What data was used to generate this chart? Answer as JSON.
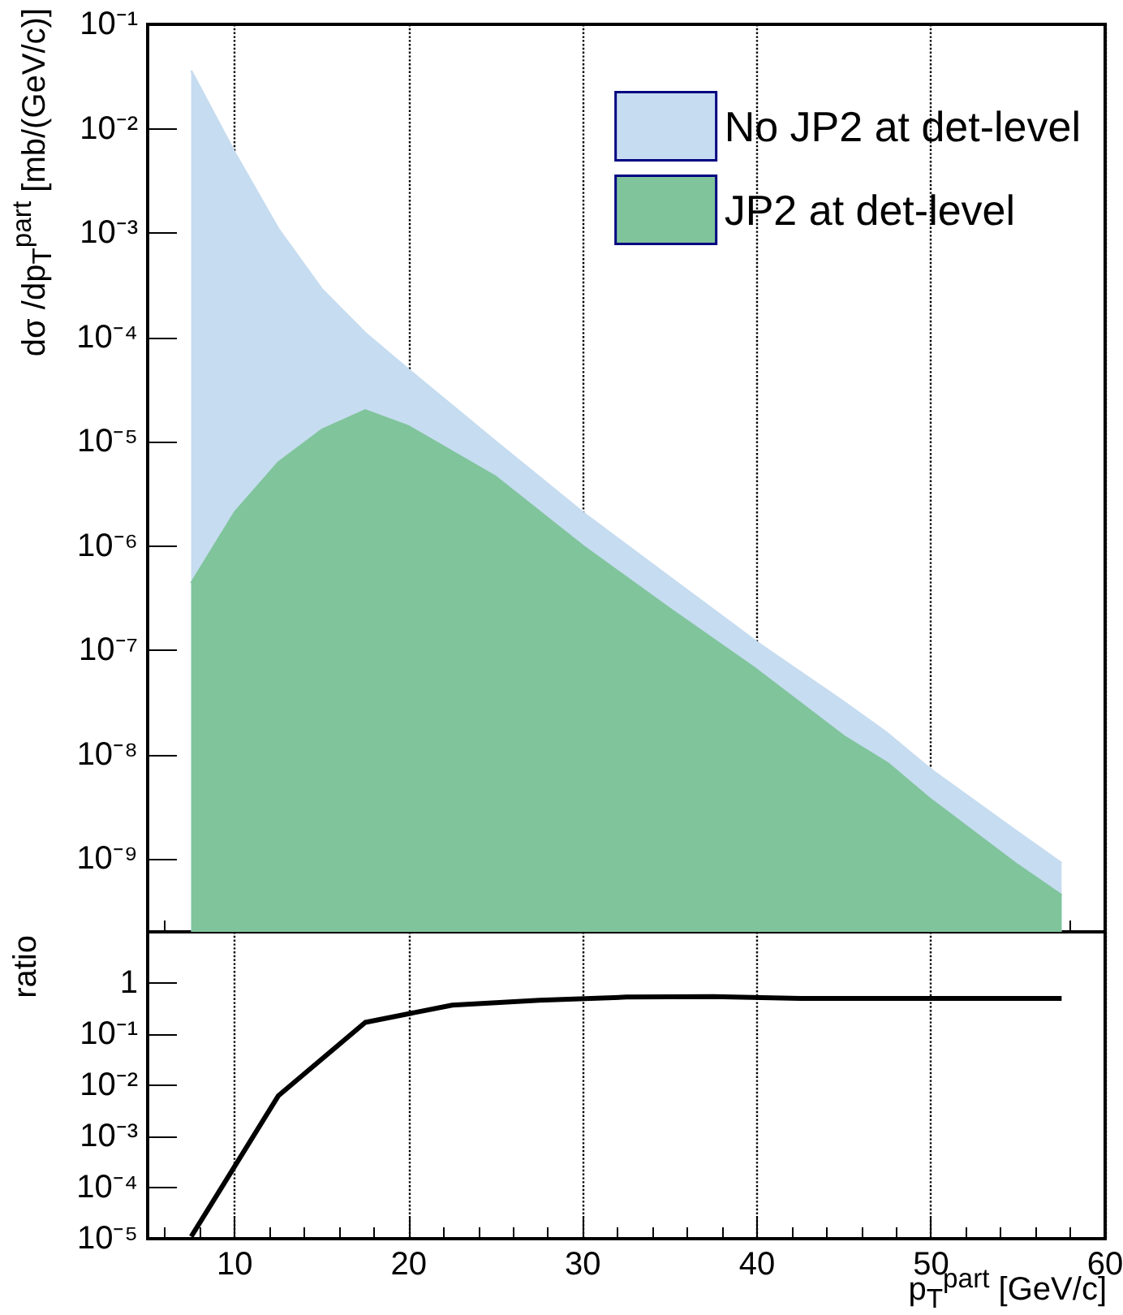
{
  "chart_data": [
    {
      "type": "area",
      "ylabel": "dσ /dp$_{T}$$^{part}$ [mb/(GeV/c)]",
      "x": [
        7.5,
        10,
        12.5,
        15,
        17.5,
        20,
        25,
        30,
        35,
        40,
        45,
        47.5,
        50,
        55,
        57.5
      ],
      "series": [
        {
          "name": "No JP2 at det-level",
          "color": "#c6dcf0",
          "values": [
            0.036,
            0.0059,
            0.0011,
            0.00029,
            0.00011,
            4.9e-05,
            1e-05,
            2.1e-06,
            5e-07,
            1.2e-07,
            3.2e-08,
            1.6e-08,
            7.2e-09,
            1.8e-09,
            9.1e-10
          ]
        },
        {
          "name": "JP2 at det-level",
          "color": "#80c49c",
          "values": [
            4.4e-07,
            2.1e-06,
            6.3e-06,
            1.3e-05,
            2e-05,
            1.4e-05,
            4.6e-06,
            1e-06,
            2.5e-07,
            6.5e-08,
            1.5e-08,
            8.3e-09,
            3.7e-09,
            8.7e-10,
            4.5e-10
          ]
        }
      ],
      "xlim": [
        5,
        60
      ],
      "xticks": [
        10,
        20,
        30,
        40,
        50,
        60
      ],
      "ylim": [
        2e-10,
        0.1
      ],
      "yticks": [
        {
          "value": 1e-09,
          "label": "10⁻⁹"
        },
        {
          "value": 1e-08,
          "label": "10⁻⁸"
        },
        {
          "value": 1e-07,
          "label": "10⁻⁷"
        },
        {
          "value": 1e-06,
          "label": "10⁻⁶"
        },
        {
          "value": 1e-05,
          "label": "10⁻⁵"
        },
        {
          "value": 0.0001,
          "label": "10⁻⁴"
        },
        {
          "value": 0.001,
          "label": "10⁻³"
        },
        {
          "value": 0.01,
          "label": "10⁻²"
        },
        {
          "value": 0.1,
          "label": "10⁻¹"
        }
      ],
      "log": "y",
      "grid": "x",
      "legend": "top right",
      "marker": "none",
      "tick_labels": "y"
    },
    {
      "type": "line",
      "xlabel": "p$_{T}$$^{part}$ [GeV/c]",
      "ylabel": "ratio",
      "x": [
        7.5,
        12.5,
        17.5,
        22.5,
        27.5,
        32.5,
        37.5,
        42.5,
        47.5,
        52.5,
        57.5
      ],
      "series": [
        {
          "color": "#000000",
          "values": [
            1.1e-05,
            0.0062,
            0.17,
            0.37,
            0.46,
            0.53,
            0.54,
            0.5,
            0.5,
            0.5,
            0.5
          ]
        }
      ],
      "xlim": [
        5,
        60
      ],
      "xticks": [
        10,
        20,
        30,
        40,
        50,
        60
      ],
      "ylim": [
        1e-05,
        10
      ],
      "yticks": [
        {
          "value": 1e-05,
          "label": "10⁻⁵"
        },
        {
          "value": 0.0001,
          "label": "10⁻⁴"
        },
        {
          "value": 0.001,
          "label": "10⁻³"
        },
        {
          "value": 0.01,
          "label": "10⁻²"
        },
        {
          "value": 0.1,
          "label": "10⁻¹"
        },
        1
      ],
      "log": "y",
      "grid": "x",
      "legend": false,
      "marker": "none"
    }
  ]
}
